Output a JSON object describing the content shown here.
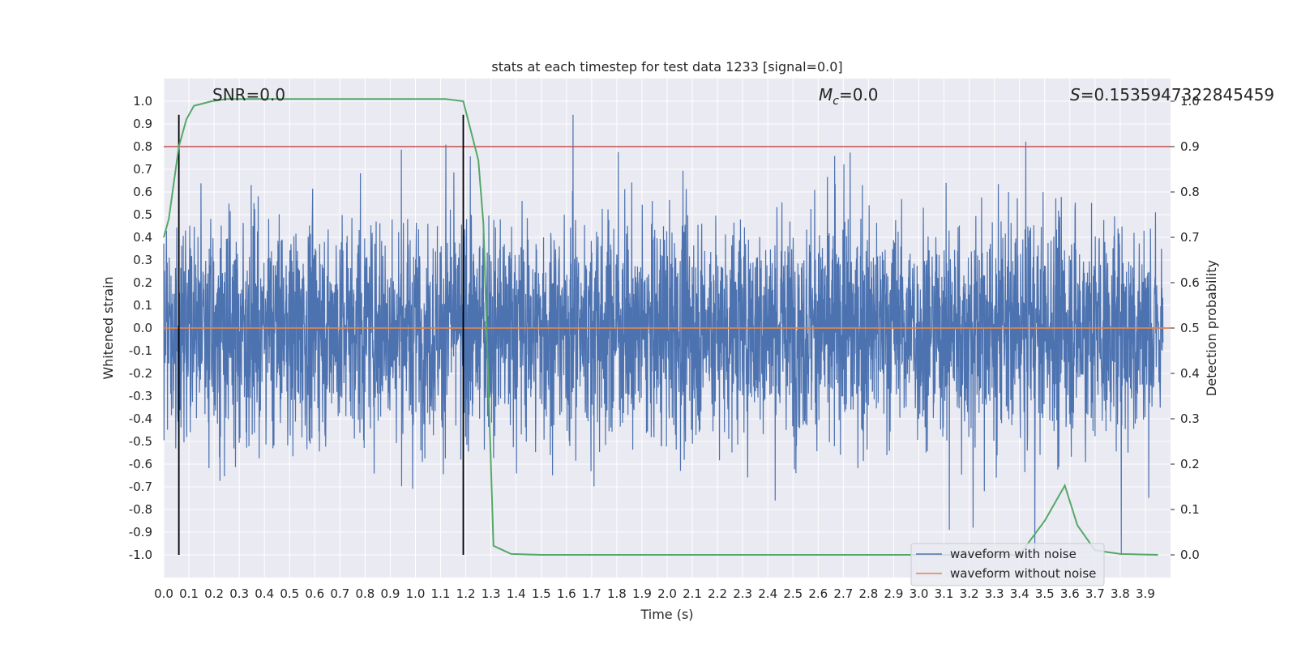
{
  "chart_data": {
    "type": "line",
    "title": "stats at each timestep for test data 1233 [signal=0.0]",
    "xlabel": "Time (s)",
    "ylabel": "Whitened strain",
    "ylabel_right": "Detection probability",
    "xlim": [
      0.0,
      4.0
    ],
    "ylim": [
      -1.1,
      1.1
    ],
    "ylim_right": [
      -0.05,
      1.05
    ],
    "x_ticks": [
      "0.0",
      "0.1",
      "0.2",
      "0.3",
      "0.4",
      "0.5",
      "0.6",
      "0.7",
      "0.8",
      "0.9",
      "1.0",
      "1.1",
      "1.2",
      "1.3",
      "1.4",
      "1.5",
      "1.6",
      "1.7",
      "1.8",
      "1.9",
      "2.0",
      "2.1",
      "2.2",
      "2.3",
      "2.4",
      "2.5",
      "2.6",
      "2.7",
      "2.8",
      "2.9",
      "3.0",
      "3.1",
      "3.2",
      "3.3",
      "3.4",
      "3.5",
      "3.6",
      "3.7",
      "3.8",
      "3.9"
    ],
    "y_ticks": [
      "1.0",
      "0.9",
      "0.8",
      "0.7",
      "0.6",
      "0.5",
      "0.4",
      "0.3",
      "0.2",
      "0.1",
      "0.0",
      "-0.1",
      "-0.2",
      "-0.3",
      "-0.4",
      "-0.5",
      "-0.6",
      "-0.7",
      "-0.8",
      "-0.9",
      "-1.0"
    ],
    "y_ticks_right": [
      "1.0",
      "0.9",
      "0.8",
      "0.7",
      "0.6",
      "0.5",
      "0.4",
      "0.3",
      "0.2",
      "0.1",
      "0.0"
    ],
    "annotations": {
      "snr": "SNR=0.0",
      "mc_symbol": "M",
      "mc_sub": "c",
      "mc_value": "=0.0",
      "s_symbol": "S",
      "s_value": "=0.153594732284545​9"
    },
    "series": [
      {
        "name": "waveform with noise",
        "color": "#4c72b0",
        "description": "dense whitened strain noise spanning roughly -1.0 to 0.94 across 0.0-4.0 s"
      },
      {
        "name": "waveform without noise",
        "color": "#dd8452",
        "values_constant": 0.0
      },
      {
        "name": "detection probability",
        "color": "#55a868",
        "axis": "right",
        "x": [
          0.0,
          0.02,
          0.04,
          0.06,
          0.09,
          0.12,
          0.19,
          0.25,
          0.31,
          0.5,
          1.0,
          1.12,
          1.19,
          1.25,
          1.27,
          1.31,
          1.38,
          1.5,
          2.0,
          3.0,
          3.4,
          3.5,
          3.58,
          3.63,
          3.7,
          3.8,
          3.95
        ],
        "values": [
          0.7,
          0.74,
          0.82,
          0.9,
          0.96,
          0.99,
          1.0,
          1.005,
          1.005,
          1.005,
          1.005,
          1.005,
          1.0,
          0.87,
          0.73,
          0.02,
          0.002,
          0.0,
          0.0,
          0.0,
          0.0,
          0.075,
          0.153,
          0.065,
          0.01,
          0.002,
          0.0
        ]
      }
    ],
    "threshold": {
      "value": 0.9,
      "axis": "right",
      "color": "#c44e52"
    },
    "vertical_markers": [
      0.06,
      1.19
    ],
    "legend": {
      "position": "lower-right",
      "entries": [
        "waveform with noise",
        "waveform without noise"
      ]
    }
  }
}
